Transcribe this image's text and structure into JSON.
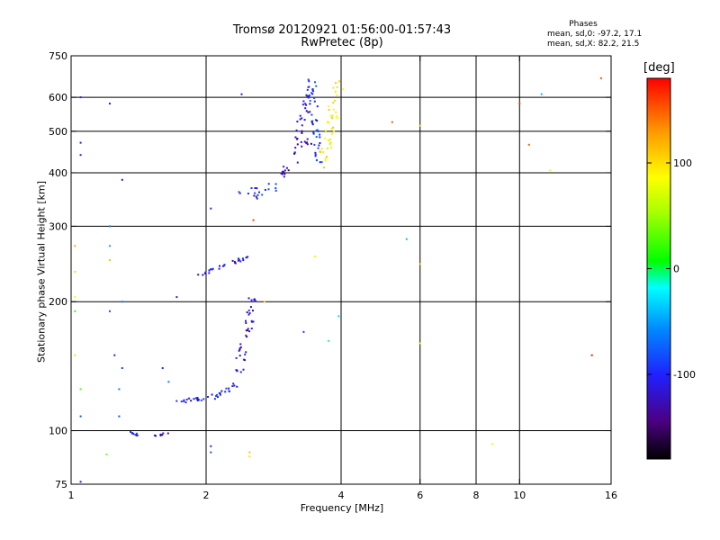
{
  "header": {
    "title": "Tromsø 20120921 01:56:00-01:57:43",
    "subtitle": "RwPretec (8p)",
    "phases_label": "Phases",
    "stat_0": "mean, sd,0: -97.2, 17.1",
    "stat_x": "mean, sd,X:  82.2, 21.5"
  },
  "colorbar": {
    "unit": "[deg]",
    "range": [
      -180,
      180
    ],
    "ticks": [
      100,
      0,
      -100
    ]
  },
  "chart_data": {
    "type": "scatter",
    "xlabel": "Frequency [MHz]",
    "ylabel": "Stationary phase Virtual Height [km]",
    "xscale": "log",
    "yscale": "log",
    "xlim": [
      1,
      16
    ],
    "ylim": [
      75,
      750
    ],
    "xticks": [
      1,
      2,
      4,
      6,
      8,
      10,
      16
    ],
    "yticks": [
      75,
      100,
      200,
      300,
      400,
      500,
      600,
      750
    ],
    "grid_x": [
      2,
      4,
      6,
      8,
      10
    ],
    "grid_y": [
      100,
      200,
      300,
      400,
      500,
      600
    ],
    "grid": true,
    "color_variable": "phase [deg]",
    "segments": [
      {
        "x": [
          1.35,
          1.42
        ],
        "y": [
          100,
          97
        ],
        "phase": -105,
        "spread": 1.5
      },
      {
        "x": [
          1.52,
          1.65
        ],
        "y": [
          97,
          99
        ],
        "phase": -108,
        "spread": 1.5
      },
      {
        "x": [
          1.7,
          2.05
        ],
        "y": [
          117,
          119
        ],
        "phase": -110,
        "spread": 2
      },
      {
        "x": [
          2.05,
          2.42
        ],
        "y": [
          119,
          130
        ],
        "phase": -105,
        "spread": 3
      },
      {
        "x": [
          2.35,
          2.55
        ],
        "y": [
          135,
          205
        ],
        "phase": -112,
        "spread": 5
      },
      {
        "x": [
          1.92,
          2.5
        ],
        "y": [
          230,
          255
        ],
        "phase": -110,
        "spread": 2
      },
      {
        "x": [
          2.4,
          2.9
        ],
        "y": [
          355,
          370
        ],
        "phase": -100,
        "spread": 8
      },
      {
        "x": [
          2.9,
          3.35
        ],
        "y": [
          390,
          480
        ],
        "phase": -125,
        "spread": 6
      },
      {
        "x": [
          3.2,
          3.45
        ],
        "y": [
          480,
          650
        ],
        "phase": -115,
        "spread": 5
      },
      {
        "x": [
          3.45,
          3.55
        ],
        "y": [
          650,
          420
        ],
        "phase": -90,
        "spread": 5
      },
      {
        "x": [
          3.65,
          3.95
        ],
        "y": [
          420,
          650
        ],
        "phase": 90,
        "spread": 6
      }
    ],
    "points": [
      {
        "x": 1.05,
        "y": 600,
        "phase": -100
      },
      {
        "x": 1.05,
        "y": 470,
        "phase": -110
      },
      {
        "x": 1.05,
        "y": 440,
        "phase": -100
      },
      {
        "x": 1.22,
        "y": 580,
        "phase": -110
      },
      {
        "x": 1.22,
        "y": 300,
        "phase": -60
      },
      {
        "x": 1.22,
        "y": 270,
        "phase": -40
      },
      {
        "x": 1.22,
        "y": 250,
        "phase": 110
      },
      {
        "x": 1.22,
        "y": 190,
        "phase": -80
      },
      {
        "x": 1.25,
        "y": 150,
        "phase": -100
      },
      {
        "x": 1.3,
        "y": 385,
        "phase": -110
      },
      {
        "x": 1.3,
        "y": 200,
        "phase": -60
      },
      {
        "x": 1.3,
        "y": 140,
        "phase": -90
      },
      {
        "x": 1.28,
        "y": 125,
        "phase": -60
      },
      {
        "x": 1.02,
        "y": 270,
        "phase": 120
      },
      {
        "x": 1.02,
        "y": 235,
        "phase": 60
      },
      {
        "x": 1.02,
        "y": 205,
        "phase": 80
      },
      {
        "x": 1.02,
        "y": 190,
        "phase": 20
      },
      {
        "x": 1.02,
        "y": 150,
        "phase": 100
      },
      {
        "x": 1.05,
        "y": 125,
        "phase": 30
      },
      {
        "x": 1.05,
        "y": 108,
        "phase": -80
      },
      {
        "x": 1.2,
        "y": 88,
        "phase": 40
      },
      {
        "x": 1.28,
        "y": 108,
        "phase": -80
      },
      {
        "x": 1.05,
        "y": 76,
        "phase": -100
      },
      {
        "x": 1.6,
        "y": 140,
        "phase": -100
      },
      {
        "x": 1.65,
        "y": 130,
        "phase": -60
      },
      {
        "x": 1.72,
        "y": 205,
        "phase": -110
      },
      {
        "x": 2.05,
        "y": 330,
        "phase": -100
      },
      {
        "x": 2.05,
        "y": 92,
        "phase": -100
      },
      {
        "x": 2.05,
        "y": 89,
        "phase": -80
      },
      {
        "x": 2.4,
        "y": 610,
        "phase": -110
      },
      {
        "x": 2.5,
        "y": 89,
        "phase": 110
      },
      {
        "x": 2.5,
        "y": 87,
        "phase": 100
      },
      {
        "x": 2.55,
        "y": 310,
        "phase": 160
      },
      {
        "x": 2.7,
        "y": 200,
        "phase": 110
      },
      {
        "x": 3.3,
        "y": 170,
        "phase": -90
      },
      {
        "x": 3.5,
        "y": 255,
        "phase": 90
      },
      {
        "x": 3.75,
        "y": 162,
        "phase": -20
      },
      {
        "x": 3.95,
        "y": 185,
        "phase": -30
      },
      {
        "x": 5.2,
        "y": 525,
        "phase": 150
      },
      {
        "x": 5.6,
        "y": 280,
        "phase": -40
      },
      {
        "x": 6.0,
        "y": 515,
        "phase": 110
      },
      {
        "x": 6.0,
        "y": 245,
        "phase": 110
      },
      {
        "x": 6.0,
        "y": 160,
        "phase": 100
      },
      {
        "x": 8.7,
        "y": 93,
        "phase": 80
      },
      {
        "x": 10.0,
        "y": 580,
        "phase": 160
      },
      {
        "x": 10.5,
        "y": 465,
        "phase": 150
      },
      {
        "x": 11.2,
        "y": 610,
        "phase": -40
      },
      {
        "x": 11.7,
        "y": 405,
        "phase": 90
      },
      {
        "x": 14.5,
        "y": 150,
        "phase": 170
      },
      {
        "x": 15.2,
        "y": 665,
        "phase": 150
      }
    ]
  }
}
